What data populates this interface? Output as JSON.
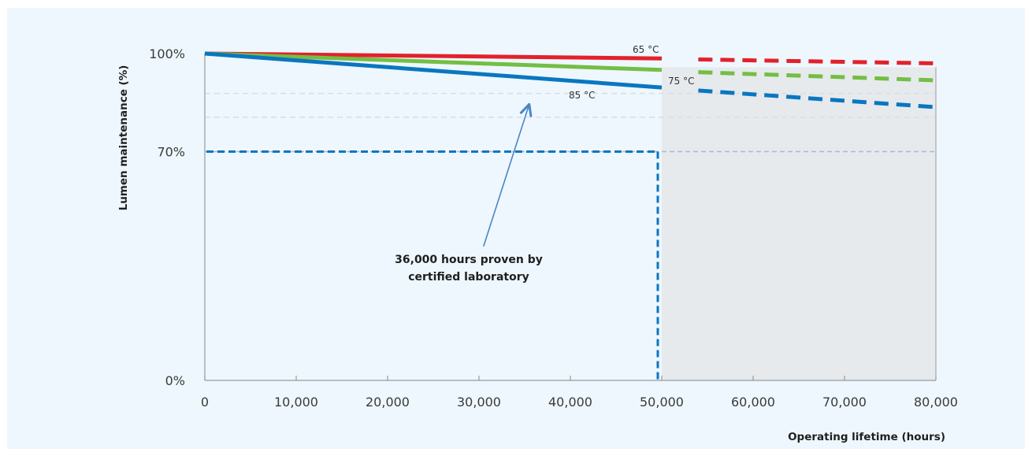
{
  "chart_data": {
    "type": "line",
    "title": "",
    "xlabel": "Operating lifetime (hours)",
    "ylabel": "Lumen maintenance (%)",
    "xlim": [
      0,
      80000
    ],
    "ylim": [
      0,
      100
    ],
    "x_ticks": [
      {
        "value": 0,
        "label": "0"
      },
      {
        "value": 10000,
        "label": "10,000"
      },
      {
        "value": 20000,
        "label": "20,000"
      },
      {
        "value": 30000,
        "label": "30,000"
      },
      {
        "value": 40000,
        "label": "40,000"
      },
      {
        "value": 50000,
        "label": "50,000"
      },
      {
        "value": 60000,
        "label": "60,000"
      },
      {
        "value": 70000,
        "label": "70,000"
      },
      {
        "value": 80000,
        "label": "80,000"
      }
    ],
    "y_ticks": [
      {
        "value": 0,
        "label": "0%"
      },
      {
        "value": 70,
        "label": "70%"
      },
      {
        "value": 100,
        "label": "100%"
      }
    ],
    "grid_lines_y": [
      70,
      80.5,
      87.8
    ],
    "series": [
      {
        "name": "65 °C",
        "label": "65 °C",
        "color": "#e3212b",
        "measured": [
          [
            0,
            100
          ],
          [
            50000,
            98.5
          ]
        ],
        "projected": [
          [
            54000,
            98.2
          ],
          [
            80000,
            97
          ]
        ]
      },
      {
        "name": "75 °C",
        "label": "75 °C",
        "color": "#73be44",
        "measured": [
          [
            0,
            100
          ],
          [
            50000,
            95
          ]
        ],
        "projected": [
          [
            54000,
            94.3
          ],
          [
            80000,
            91.8
          ]
        ]
      },
      {
        "name": "85 °C",
        "label": "85 °C",
        "color": "#0a76c0",
        "measured": [
          [
            0,
            100
          ],
          [
            50000,
            89.6
          ]
        ],
        "projected": [
          [
            54000,
            88.7
          ],
          [
            80000,
            83.6
          ]
        ]
      }
    ],
    "reference_lines": {
      "color": "#0a76c0",
      "l70_value": 70,
      "l70_hours": 50000
    },
    "projected_region": {
      "from": 50000,
      "to": 80000,
      "color": "#e6eaed"
    },
    "annotation": {
      "lines": [
        "36,000 hours proven by",
        "certified laboratory"
      ],
      "arrow_from": [
        30500,
        41
      ],
      "arrow_to": [
        35500,
        84.5
      ],
      "arrow_color": "#4a86c5"
    }
  }
}
